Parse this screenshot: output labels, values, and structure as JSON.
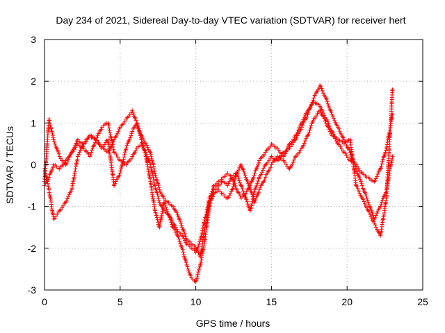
{
  "chart_data": {
    "type": "scatter",
    "title": "Day 234 of 2021, Sidereal Day-to-day VTEC variation (SDTVAR) for receiver hert",
    "xlabel": "GPS time / hours",
    "ylabel": "SDTVAR / TECUs",
    "xlim": [
      0,
      25
    ],
    "ylim": [
      -3,
      3
    ],
    "xticks": [
      0,
      5,
      10,
      15,
      20,
      25
    ],
    "yticks": [
      -3,
      -2,
      -1,
      0,
      1,
      2,
      3
    ],
    "grid": true,
    "marker": "plus",
    "color": "#ff0000",
    "series": [
      {
        "name": "trace-1",
        "x": [
          0.0,
          0.3,
          0.6,
          1.0,
          1.4,
          1.8,
          2.2,
          2.6,
          3.0,
          3.4,
          3.8,
          4.2,
          4.6,
          5.0,
          5.4,
          5.8,
          6.1,
          6.4,
          6.7,
          7.0,
          7.3,
          7.6,
          7.9,
          8.2,
          8.5,
          8.8,
          9.1,
          9.4,
          9.7,
          10.0,
          10.3,
          10.6,
          10.9,
          11.2,
          11.5,
          11.8,
          12.1,
          12.4,
          12.7,
          13.0,
          13.3,
          13.6,
          13.9,
          14.2,
          14.6,
          15.0,
          15.4,
          15.8,
          16.2,
          16.6,
          17.0,
          17.4,
          17.8,
          18.2,
          18.6,
          19.0,
          19.4,
          19.8,
          20.2,
          20.6,
          21.0,
          21.4,
          21.8,
          22.2,
          22.6,
          23.0
        ],
        "y": [
          -0.1,
          -0.6,
          -1.3,
          -1.1,
          -0.9,
          -0.6,
          0.2,
          0.5,
          0.7,
          0.6,
          0.4,
          0.3,
          0.6,
          0.9,
          1.1,
          1.3,
          1.0,
          0.6,
          0.2,
          -0.4,
          -1.1,
          -1.5,
          -0.9,
          -1.2,
          -1.5,
          -1.7,
          -2.0,
          -2.4,
          -2.7,
          -2.8,
          -2.4,
          -1.8,
          -1.0,
          -0.6,
          -0.5,
          -0.4,
          -0.5,
          -0.3,
          -0.2,
          -0.5,
          -0.8,
          -1.1,
          -0.6,
          -0.3,
          0.0,
          0.2,
          0.1,
          0.3,
          0.4,
          0.6,
          0.9,
          1.2,
          1.6,
          1.9,
          1.6,
          1.2,
          0.9,
          0.6,
          0.3,
          -0.1,
          -0.5,
          -0.9,
          -1.3,
          -1.0,
          -0.6,
          0.2
        ]
      },
      {
        "name": "trace-2",
        "x": [
          0.0,
          0.3,
          0.6,
          1.0,
          1.4,
          1.8,
          2.2,
          2.6,
          3.0,
          3.4,
          3.8,
          4.2,
          4.6,
          5.0,
          5.4,
          5.8,
          6.1,
          6.4,
          6.7,
          7.0,
          7.3,
          7.6,
          7.9,
          8.2,
          8.5,
          8.8,
          9.1,
          9.4,
          9.7,
          10.0,
          10.3,
          10.6,
          10.9,
          11.2,
          11.5,
          11.8,
          12.1,
          12.4,
          12.7,
          13.0,
          13.3,
          13.6,
          13.9,
          14.2,
          14.6,
          15.0,
          15.4,
          15.8,
          16.2,
          16.6,
          17.0,
          17.4,
          17.8,
          18.2,
          18.6,
          19.0,
          19.4,
          19.8,
          20.2,
          20.6,
          21.0,
          21.4,
          21.8,
          22.2,
          22.6,
          23.0
        ],
        "y": [
          -0.4,
          1.1,
          0.6,
          0.2,
          0.0,
          0.3,
          0.5,
          0.4,
          0.2,
          0.6,
          0.9,
          1.0,
          0.3,
          0.1,
          0.0,
          0.2,
          0.4,
          0.5,
          0.3,
          0.0,
          -0.5,
          -0.9,
          -1.1,
          -1.2,
          -1.4,
          -1.6,
          -1.7,
          -1.9,
          -2.0,
          -2.1,
          -1.8,
          -1.3,
          -0.8,
          -0.5,
          -0.4,
          -0.3,
          -0.2,
          -0.3,
          -0.6,
          -0.8,
          -0.7,
          -0.5,
          -0.2,
          0.1,
          0.3,
          0.5,
          0.4,
          0.2,
          0.5,
          0.7,
          1.0,
          1.3,
          1.5,
          1.4,
          1.1,
          0.8,
          0.5,
          0.3,
          0.1,
          0.0,
          -0.2,
          -0.3,
          -0.4,
          -0.1,
          0.4,
          1.2
        ]
      },
      {
        "name": "trace-3",
        "x": [
          0.0,
          0.3,
          0.6,
          1.0,
          1.4,
          1.8,
          2.2,
          2.6,
          3.0,
          3.4,
          3.8,
          4.2,
          4.6,
          5.0,
          5.4,
          5.8,
          6.1,
          6.4,
          6.7,
          7.0,
          7.3,
          7.6,
          7.9,
          8.2,
          8.5,
          8.8,
          9.1,
          9.4,
          9.7,
          10.0,
          10.3,
          10.6,
          10.9,
          11.2,
          11.5,
          11.8,
          12.1,
          12.4,
          12.7,
          13.0,
          13.3,
          13.6,
          13.9,
          14.2,
          14.6,
          15.0,
          15.4,
          15.8,
          16.2,
          16.6,
          17.0,
          17.4,
          17.8,
          18.2,
          18.6,
          19.0,
          19.4,
          19.8,
          20.2,
          20.6,
          21.0,
          21.4,
          21.8,
          22.2,
          22.6,
          23.0
        ],
        "y": [
          -0.5,
          -0.3,
          0.0,
          -0.1,
          0.1,
          0.3,
          0.6,
          0.5,
          0.7,
          0.6,
          0.4,
          0.6,
          -0.5,
          -0.2,
          0.4,
          0.8,
          1.0,
          0.7,
          0.5,
          0.3,
          -0.2,
          -0.6,
          -0.8,
          -0.9,
          -1.0,
          -1.2,
          -1.5,
          -1.8,
          -1.9,
          -2.0,
          -2.2,
          -1.5,
          -0.9,
          -0.7,
          -0.6,
          -0.7,
          -0.8,
          -0.6,
          -0.2,
          0.0,
          -0.3,
          -0.6,
          -0.9,
          -0.6,
          -0.3,
          0.0,
          0.2,
          0.1,
          -0.1,
          0.2,
          0.4,
          0.7,
          1.1,
          1.3,
          1.0,
          0.7,
          0.6,
          0.5,
          0.6,
          -0.5,
          -0.8,
          -1.1,
          -1.4,
          -1.7,
          -0.8,
          1.8
        ]
      }
    ]
  }
}
